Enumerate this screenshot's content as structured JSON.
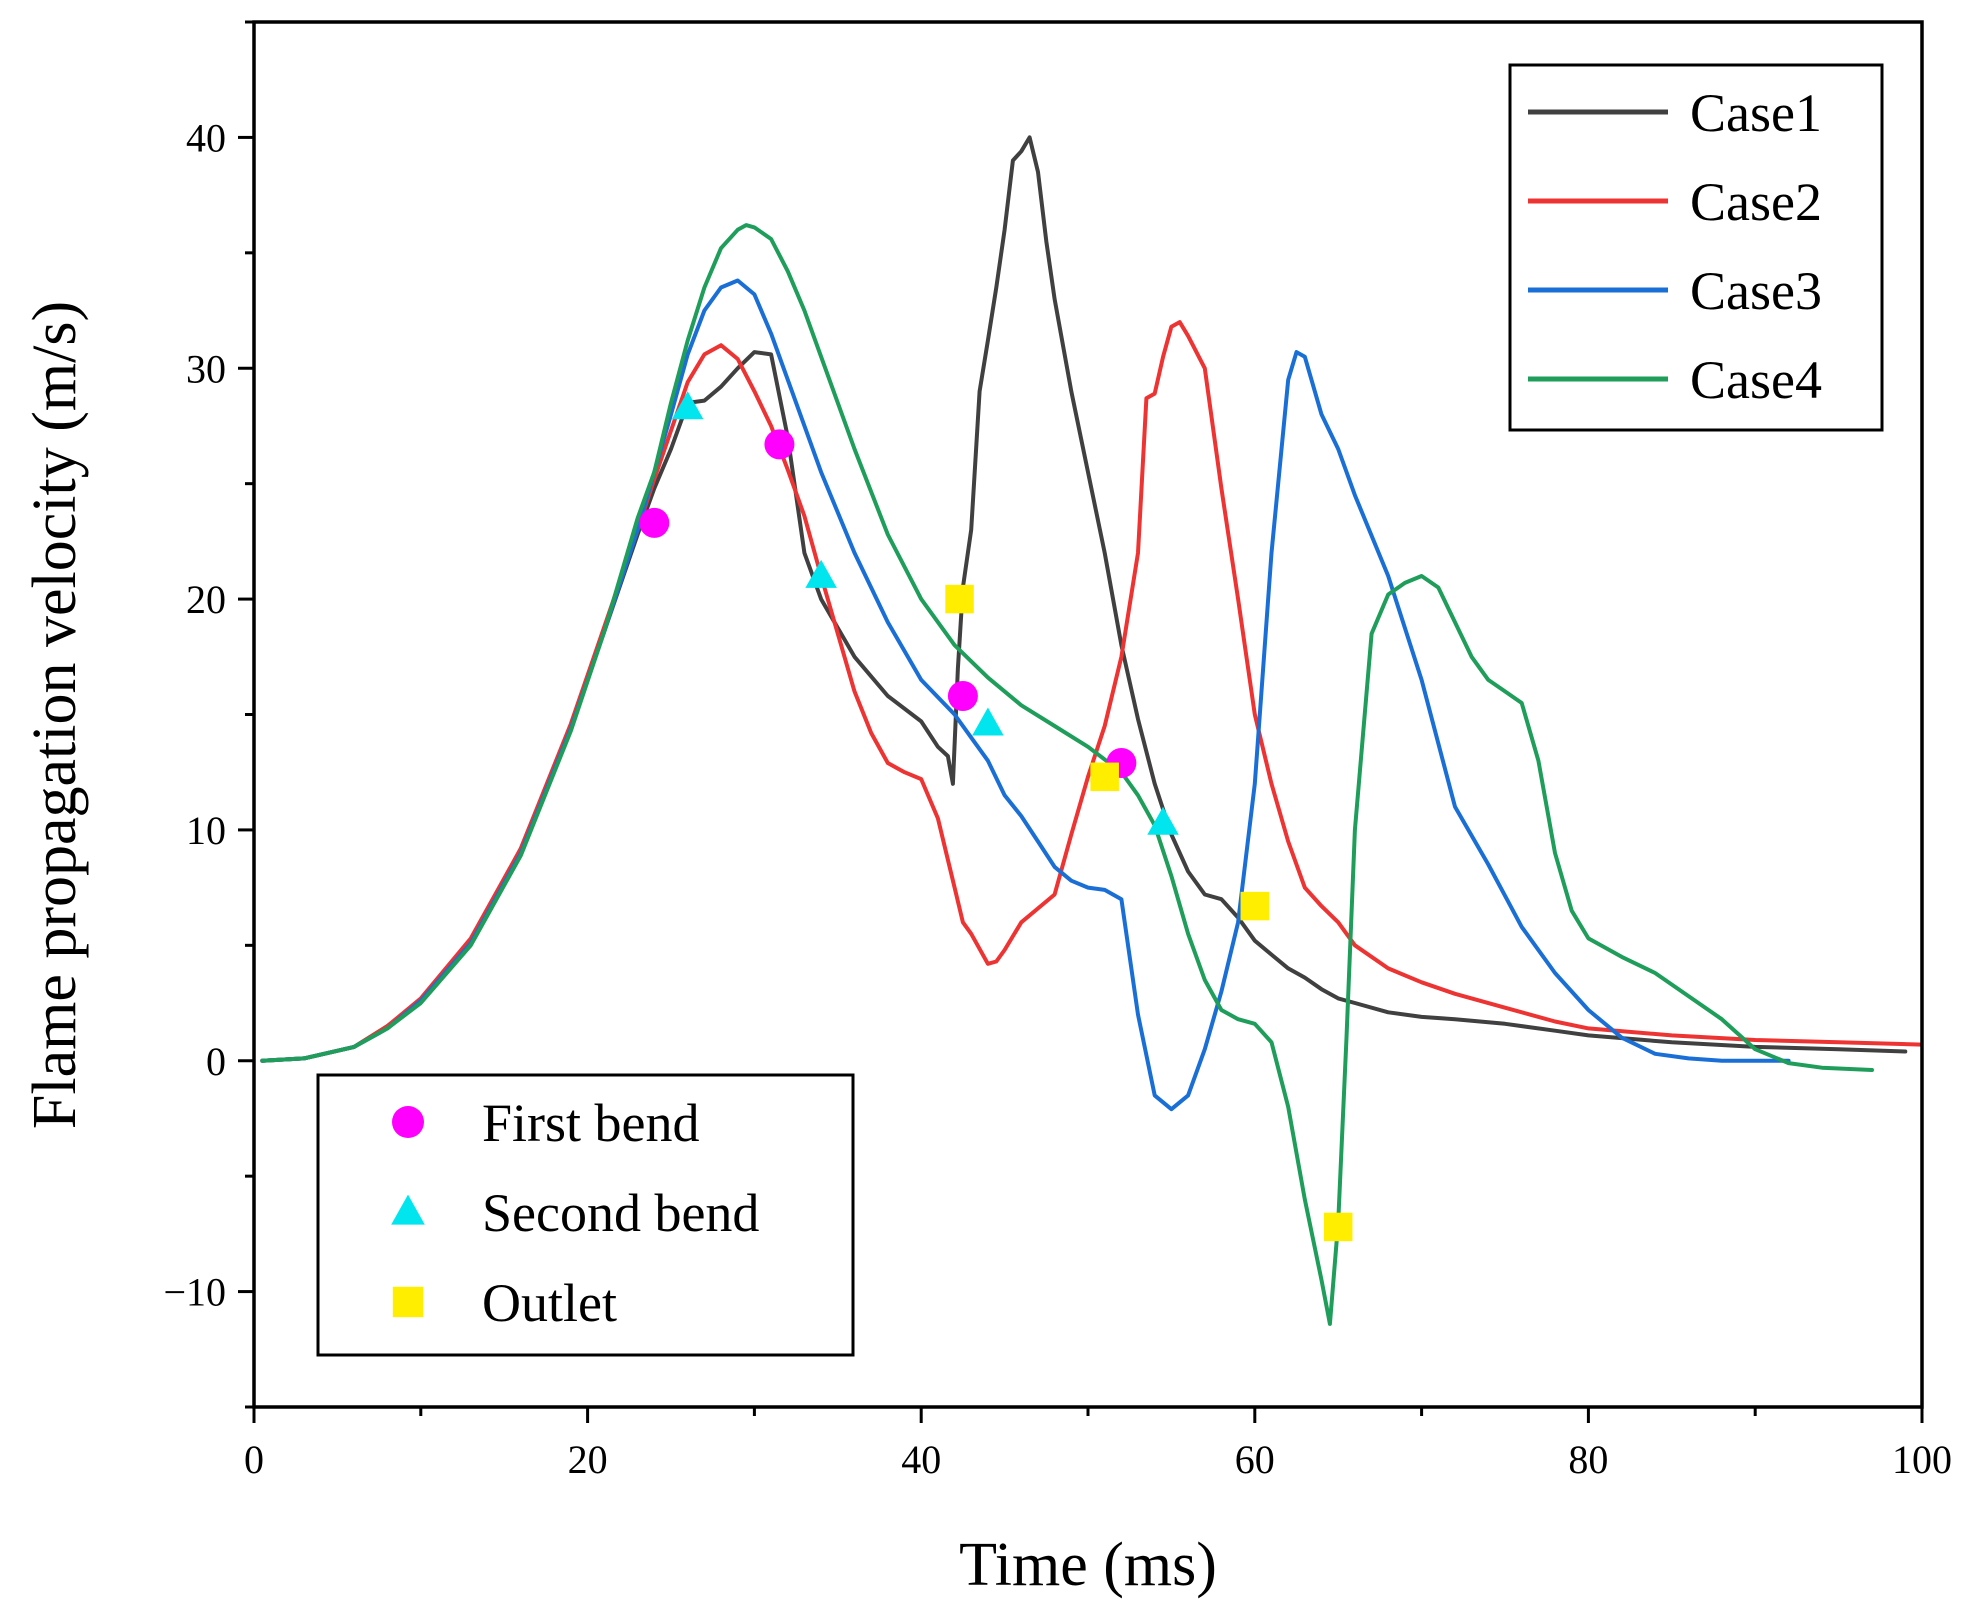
{
  "chart_data": {
    "type": "line",
    "title": "",
    "xlabel": "Time (ms)",
    "ylabel": "Flame propagation velocity (m/s)",
    "xlim": [
      0,
      100
    ],
    "ylim": [
      -15,
      45
    ],
    "xticks": [
      0,
      20,
      40,
      60,
      80,
      100
    ],
    "yticks": [
      -10,
      0,
      10,
      20,
      30,
      40
    ],
    "xtick_labels": [
      "0",
      "20",
      "40",
      "60",
      "80",
      "100"
    ],
    "ytick_labels": [
      "−10",
      "0",
      "10",
      "20",
      "30",
      "40"
    ],
    "grid": false,
    "legend_lines_position": "top-right",
    "legend_markers_position": "bottom-left",
    "series": [
      {
        "name": "Case1",
        "color": "#404040",
        "x": [
          0.5,
          3,
          6,
          8,
          10,
          13,
          16,
          19,
          21,
          23,
          24,
          25,
          26,
          27,
          28,
          29,
          30,
          31,
          32,
          33,
          34,
          36,
          38,
          40,
          41,
          41.6,
          41.9,
          42.2,
          42.5,
          43,
          43.5,
          44,
          44.5,
          45,
          45.5,
          46,
          46.5,
          47,
          47.5,
          48,
          49,
          50,
          51,
          52,
          53,
          54,
          55,
          56,
          57,
          58,
          59,
          60,
          61,
          62,
          63,
          64,
          65,
          66,
          68,
          70,
          72,
          75,
          78,
          80,
          85,
          90,
          95,
          99
        ],
        "y": [
          0,
          0.1,
          0.6,
          1.5,
          2.6,
          5.2,
          9.2,
          14.5,
          18.6,
          22.8,
          24.8,
          26.5,
          28.5,
          28.6,
          29.2,
          30.0,
          30.7,
          30.6,
          27.0,
          22.0,
          20.0,
          17.5,
          15.8,
          14.7,
          13.6,
          13.2,
          12.0,
          17.0,
          20.5,
          23.0,
          29.0,
          31.2,
          33.5,
          36.0,
          39.0,
          39.4,
          40.0,
          38.5,
          35.5,
          33.0,
          29.0,
          25.5,
          22.0,
          18.0,
          14.8,
          12.0,
          9.8,
          8.2,
          7.2,
          7.0,
          6.2,
          5.2,
          4.6,
          4.0,
          3.6,
          3.1,
          2.7,
          2.5,
          2.1,
          1.9,
          1.8,
          1.6,
          1.3,
          1.1,
          0.8,
          0.6,
          0.5,
          0.4
        ]
      },
      {
        "name": "Case2",
        "color": "#ee3333",
        "x": [
          0.5,
          3,
          6,
          8,
          10,
          13,
          16,
          19,
          21,
          23,
          24,
          25,
          26,
          27,
          28,
          29,
          30,
          31,
          32,
          33,
          34,
          35,
          36,
          37,
          38,
          39,
          40,
          41,
          42,
          42.5,
          43,
          44,
          44.5,
          45,
          46,
          47,
          48,
          49,
          50,
          51,
          52,
          53,
          53.5,
          54,
          54.5,
          55,
          55.5,
          56,
          57,
          58,
          59,
          60,
          61,
          62,
          63,
          64,
          65,
          66,
          68,
          70,
          72,
          75,
          78,
          80,
          85,
          90,
          95,
          100
        ],
        "y": [
          0,
          0.1,
          0.6,
          1.5,
          2.7,
          5.3,
          9.2,
          14.6,
          18.8,
          23.0,
          25.2,
          27.3,
          29.4,
          30.6,
          31.0,
          30.4,
          29.0,
          27.5,
          25.6,
          23.6,
          21.0,
          18.5,
          16.0,
          14.2,
          12.9,
          12.5,
          12.2,
          10.5,
          7.5,
          6.0,
          5.5,
          4.2,
          4.3,
          4.8,
          6.0,
          6.6,
          7.2,
          9.8,
          12.3,
          14.5,
          17.5,
          22.0,
          28.7,
          28.9,
          30.5,
          31.8,
          32.0,
          31.4,
          30.0,
          24.8,
          20.0,
          15.0,
          12.0,
          9.5,
          7.5,
          6.7,
          6.0,
          5.0,
          4.0,
          3.4,
          2.9,
          2.3,
          1.7,
          1.4,
          1.1,
          0.9,
          0.8,
          0.7
        ]
      },
      {
        "name": "Case3",
        "color": "#1a6fd6",
        "x": [
          0.5,
          3,
          6,
          8,
          10,
          13,
          16,
          19,
          21,
          23,
          24,
          25,
          26,
          27,
          28,
          29,
          30,
          31,
          32,
          34,
          36,
          38,
          40,
          42,
          43,
          44,
          45,
          46,
          47,
          48,
          49,
          50,
          51,
          52,
          53,
          54,
          55,
          56,
          57,
          58,
          59,
          60,
          61,
          62,
          62.5,
          63,
          64,
          65,
          66,
          68,
          70,
          72,
          74,
          76,
          78,
          80,
          82,
          84,
          86,
          88,
          90,
          92
        ],
        "y": [
          0,
          0.1,
          0.6,
          1.4,
          2.6,
          5.1,
          9.0,
          14.4,
          18.6,
          23.0,
          25.5,
          28.0,
          30.6,
          32.5,
          33.5,
          33.8,
          33.2,
          31.5,
          29.5,
          25.5,
          22.0,
          19.0,
          16.5,
          15.0,
          14.0,
          13.0,
          11.5,
          10.6,
          9.5,
          8.4,
          7.8,
          7.5,
          7.4,
          7.0,
          2.0,
          -1.5,
          -2.1,
          -1.5,
          0.5,
          3.0,
          6.0,
          12.0,
          22.0,
          29.5,
          30.7,
          30.5,
          28.0,
          26.5,
          24.5,
          21.0,
          16.5,
          11.0,
          8.5,
          5.8,
          3.8,
          2.2,
          1.0,
          0.3,
          0.1,
          0.0,
          0.0,
          0.0
        ]
      },
      {
        "name": "Case4",
        "color": "#1e9e5a",
        "x": [
          0.5,
          3,
          6,
          8,
          10,
          13,
          16,
          19,
          21,
          23,
          24,
          25,
          26,
          27,
          28,
          29,
          29.5,
          30,
          31,
          32,
          33,
          34,
          36,
          38,
          40,
          42,
          44,
          46,
          48,
          50,
          52,
          53,
          54,
          55,
          56,
          57,
          58,
          59,
          60,
          61,
          62,
          63,
          64,
          64.5,
          65,
          65.5,
          66,
          67,
          68,
          69,
          70,
          71,
          72,
          73,
          74,
          75,
          76,
          77,
          78,
          79,
          80,
          82,
          84,
          86,
          88,
          90,
          92,
          94,
          97
        ],
        "y": [
          0,
          0.1,
          0.6,
          1.4,
          2.5,
          5.0,
          8.9,
          14.3,
          18.6,
          23.5,
          25.5,
          28.5,
          31.2,
          33.5,
          35.2,
          36.0,
          36.2,
          36.1,
          35.6,
          34.2,
          32.5,
          30.5,
          26.5,
          22.8,
          20.0,
          18.0,
          16.6,
          15.4,
          14.5,
          13.6,
          12.5,
          11.5,
          10.2,
          8.0,
          5.5,
          3.5,
          2.2,
          1.8,
          1.6,
          0.8,
          -2.0,
          -6.0,
          -9.5,
          -11.4,
          -7.0,
          1.0,
          10.0,
          18.5,
          20.2,
          20.7,
          21.0,
          20.5,
          19.0,
          17.5,
          16.5,
          16.0,
          15.5,
          13.0,
          9.0,
          6.5,
          5.3,
          4.5,
          3.8,
          2.8,
          1.8,
          0.5,
          -0.1,
          -0.3,
          -0.4
        ]
      }
    ],
    "markers": [
      {
        "name": "First bend",
        "shape": "circle",
        "color": "#ff00ff",
        "points": [
          {
            "x": 24,
            "y": 23.3
          },
          {
            "x": 31.5,
            "y": 26.7
          },
          {
            "x": 42.5,
            "y": 15.8
          },
          {
            "x": 52,
            "y": 12.9
          }
        ]
      },
      {
        "name": "Second bend",
        "shape": "triangle",
        "color": "#00e5ee",
        "points": [
          {
            "x": 26,
            "y": 28.3
          },
          {
            "x": 34,
            "y": 21.0
          },
          {
            "x": 44,
            "y": 14.6
          },
          {
            "x": 54.5,
            "y": 10.3
          }
        ]
      },
      {
        "name": "Outlet",
        "shape": "square",
        "color": "#ffee00",
        "points": [
          {
            "x": 42.3,
            "y": 20.0
          },
          {
            "x": 51,
            "y": 12.3
          },
          {
            "x": 60,
            "y": 6.7
          },
          {
            "x": 65,
            "y": -7.2
          }
        ]
      }
    ]
  }
}
